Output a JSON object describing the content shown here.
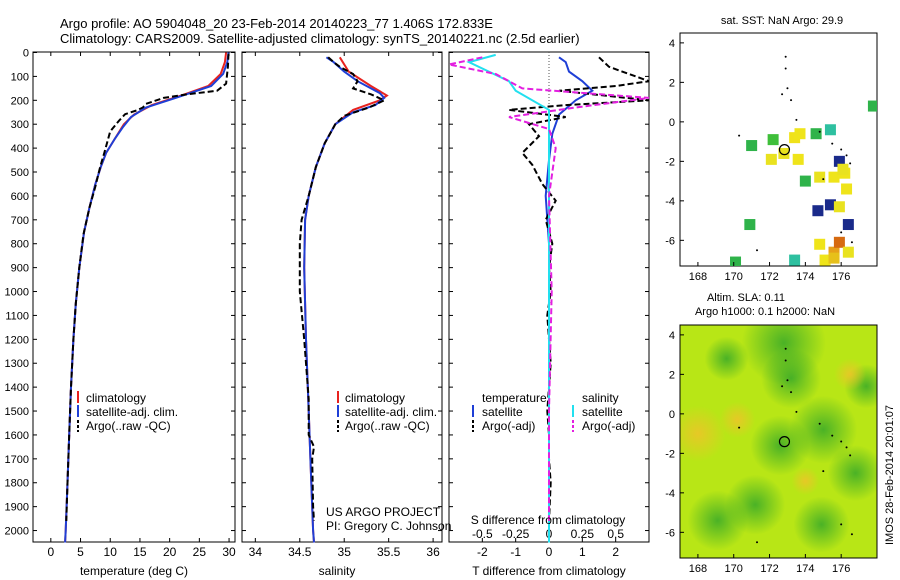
{
  "title": {
    "line1": "Argo profile: AO 5904048_20 23-Feb-2014 20140223_77 1.406S 172.833E",
    "line2": "Climatology: CARS2009. Satellite-adjusted climatology: synTS_20140221.nc (2.5d earlier)"
  },
  "depth_ticks": [
    "0",
    "100",
    "200",
    "300",
    "400",
    "500",
    "600",
    "700",
    "800",
    "900",
    "1000",
    "1100",
    "1200",
    "1300",
    "1400",
    "1500",
    "1600",
    "1700",
    "1800",
    "1900",
    "2000"
  ],
  "colors": {
    "climatology": "#e8231f",
    "satellite": "#1f3fd6",
    "argo": "#000000",
    "salinity_sat": "#22e0ef",
    "salinity_argo": "#e31fe0"
  },
  "temperature_panel": {
    "xlabel": "temperature (deg C)",
    "xticks": [
      "0",
      "5",
      "10",
      "15",
      "20",
      "25",
      "30"
    ],
    "legend": [
      "climatology",
      "satellite-adj. clim.",
      "Argo(..raw -QC)"
    ]
  },
  "salinity_panel": {
    "xlabel": "salinity",
    "xticks": [
      "34",
      "34.5",
      "35",
      "35.5",
      "36"
    ],
    "legend": [
      "climatology",
      "satellite-adj. clim.",
      "Argo(..raw -QC)"
    ],
    "credit1": "US ARGO PROJECT",
    "credit2": "PI: Gregory C. Johnson"
  },
  "difference_panel": {
    "xlabel_top": "S difference from climatology",
    "xlabel_bottom": "T difference from climatology",
    "s_ticks": [
      "-0.5",
      "-0.25",
      "0",
      "0.25",
      "0.5"
    ],
    "t_ticks": [
      "-2",
      "-1",
      "0",
      "1",
      "2"
    ],
    "legend_temperature_title": "temperature",
    "legend_salinity_title": "salinity",
    "legend_satellite": "satellite",
    "legend_argo": "Argo(-adj)"
  },
  "sst_map": {
    "title": "sat. SST: NaN Argo: 29.9",
    "xticks": [
      "168",
      "170",
      "172",
      "174",
      "176"
    ],
    "yticks": [
      "4",
      "2",
      "0",
      "-2",
      "-4",
      "-6"
    ]
  },
  "sla_map": {
    "title1": "Altim. SLA: 0.11",
    "title2": "Argo h1000: 0.1 h2000: NaN",
    "xticks": [
      "168",
      "170",
      "172",
      "174",
      "176"
    ],
    "yticks": [
      "4",
      "2",
      "0",
      "-2",
      "-4",
      "-6"
    ]
  },
  "footer_stamp": "IMOS 28-Feb-2014 20:01:07",
  "chart_data": [
    {
      "type": "line",
      "name": "temperature",
      "xlabel": "temperature (deg C)",
      "ylabel": "",
      "xlim": [
        -3,
        31
      ],
      "ylim": [
        2050,
        0
      ],
      "series": [
        {
          "name": "climatology",
          "points": [
            [
              29.5,
              0
            ],
            [
              29.3,
              40
            ],
            [
              28.6,
              90
            ],
            [
              26.5,
              140
            ],
            [
              22,
              180
            ],
            [
              17,
              220
            ],
            [
              14,
              260
            ],
            [
              12.3,
              300
            ],
            [
              10.8,
              360
            ],
            [
              9.3,
              420
            ],
            [
              8.4,
              480
            ],
            [
              7.5,
              550
            ],
            [
              6.5,
              650
            ],
            [
              5.6,
              750
            ],
            [
              4.8,
              900
            ],
            [
              4.2,
              1050
            ],
            [
              3.8,
              1200
            ],
            [
              3.4,
              1400
            ],
            [
              3.1,
              1600
            ],
            [
              2.8,
              1800
            ],
            [
              2.5,
              2000
            ],
            [
              2.4,
              2050
            ]
          ]
        },
        {
          "name": "satellite-adj. clim.",
          "points": [
            [
              29.9,
              0
            ],
            [
              29.7,
              40
            ],
            [
              29,
              90
            ],
            [
              27,
              140
            ],
            [
              21,
              190
            ],
            [
              16,
              230
            ],
            [
              13.5,
              270
            ],
            [
              12.2,
              310
            ],
            [
              10.8,
              360
            ],
            [
              9.3,
              420
            ],
            [
              8.4,
              480
            ],
            [
              7.5,
              550
            ],
            [
              6.5,
              650
            ],
            [
              5.6,
              750
            ],
            [
              4.8,
              900
            ],
            [
              4.2,
              1050
            ],
            [
              3.8,
              1200
            ],
            [
              3.4,
              1400
            ],
            [
              3.1,
              1600
            ],
            [
              2.8,
              1800
            ],
            [
              2.5,
              2000
            ],
            [
              2.4,
              2050
            ]
          ]
        },
        {
          "name": "Argo(..raw -QC)",
          "points": [
            [
              29.9,
              5
            ],
            [
              29.8,
              60
            ],
            [
              29.5,
              130
            ],
            [
              28,
              160
            ],
            [
              23,
              175
            ],
            [
              19,
              190
            ],
            [
              16,
              215
            ],
            [
              15.5,
              230
            ],
            [
              14.5,
              242
            ],
            [
              12.5,
              258
            ],
            [
              11.5,
              285
            ],
            [
              10,
              330
            ],
            [
              9,
              420
            ],
            [
              8.3,
              480
            ],
            [
              7.5,
              560
            ],
            [
              6.5,
              650
            ],
            [
              5.5,
              760
            ],
            [
              4.8,
              900
            ],
            [
              4.2,
              1050
            ],
            [
              3.8,
              1200
            ],
            [
              3.4,
              1400
            ],
            [
              3.1,
              1600
            ],
            [
              2.8,
              1800
            ],
            [
              2.6,
              1960
            ]
          ]
        }
      ]
    },
    {
      "type": "line",
      "name": "salinity",
      "xlabel": "salinity",
      "ylabel": "",
      "xlim": [
        33.85,
        36.1
      ],
      "ylim": [
        2050,
        0
      ],
      "series": [
        {
          "name": "climatology",
          "points": [
            [
              34.95,
              20
            ],
            [
              35.05,
              80
            ],
            [
              35.3,
              140
            ],
            [
              35.48,
              180
            ],
            [
              35.4,
              200
            ],
            [
              35.1,
              240
            ],
            [
              34.9,
              300
            ],
            [
              34.78,
              380
            ],
            [
              34.68,
              480
            ],
            [
              34.6,
              600
            ],
            [
              34.56,
              700
            ],
            [
              34.55,
              900
            ],
            [
              34.57,
              1200
            ],
            [
              34.6,
              1500
            ],
            [
              34.62,
              1700
            ],
            [
              34.65,
              2000
            ],
            [
              34.66,
              2050
            ]
          ]
        },
        {
          "name": "satellite-adj. clim.",
          "points": [
            [
              34.8,
              20
            ],
            [
              34.88,
              40
            ],
            [
              35,
              80
            ],
            [
              35.15,
              120
            ],
            [
              35.4,
              170
            ],
            [
              35.45,
              190
            ],
            [
              35.35,
              220
            ],
            [
              35.1,
              250
            ],
            [
              34.9,
              300
            ],
            [
              34.78,
              380
            ],
            [
              34.68,
              480
            ],
            [
              34.6,
              600
            ],
            [
              34.56,
              700
            ],
            [
              34.55,
              900
            ],
            [
              34.57,
              1200
            ],
            [
              34.6,
              1500
            ],
            [
              34.62,
              1700
            ],
            [
              34.65,
              2000
            ],
            [
              34.66,
              2050
            ]
          ]
        },
        {
          "name": "Argo(..raw -QC)",
          "points": [
            [
              34.82,
              20
            ],
            [
              34.88,
              40
            ],
            [
              34.95,
              60
            ],
            [
              35.1,
              90
            ],
            [
              35.15,
              120
            ],
            [
              35.1,
              150
            ],
            [
              35.3,
              175
            ],
            [
              35.45,
              200
            ],
            [
              35.28,
              230
            ],
            [
              35.0,
              265
            ],
            [
              34.9,
              300
            ],
            [
              34.78,
              380
            ],
            [
              34.68,
              480
            ],
            [
              34.6,
              600
            ],
            [
              34.52,
              700
            ],
            [
              34.5,
              800
            ],
            [
              34.5,
              1000
            ],
            [
              34.55,
              1200
            ],
            [
              34.6,
              1450
            ],
            [
              34.6,
              1600
            ],
            [
              34.66,
              1650
            ],
            [
              34.64,
              1700
            ],
            [
              34.65,
              1900
            ],
            [
              34.66,
              1960
            ]
          ]
        }
      ]
    },
    {
      "type": "line",
      "name": "difference",
      "xlabel": "T difference from climatology",
      "ylabel": "",
      "xlim": [
        -3,
        3
      ],
      "ylim": [
        2050,
        0
      ],
      "series": [
        {
          "name": "temperature satellite",
          "points": [
            [
              0.3,
              20
            ],
            [
              0.5,
              40
            ],
            [
              0.6,
              80
            ],
            [
              1.0,
              120
            ],
            [
              1.3,
              160
            ],
            [
              0.8,
              200
            ],
            [
              0.3,
              260
            ],
            [
              0.1,
              340
            ],
            [
              0.0,
              450
            ],
            [
              -0.1,
              600
            ],
            [
              0.0,
              800
            ],
            [
              0.0,
              1200
            ],
            [
              0.0,
              1600
            ],
            [
              0.0,
              2050
            ]
          ]
        },
        {
          "name": "temperature Argo(-adj)",
          "points": [
            [
              1.5,
              20
            ],
            [
              1.8,
              60
            ],
            [
              3.0,
              120
            ],
            [
              2.0,
              140
            ],
            [
              0.3,
              160
            ],
            [
              3.0,
              200
            ],
            [
              0.5,
              220
            ],
            [
              -1.2,
              240
            ],
            [
              0.5,
              270
            ],
            [
              -0.6,
              300
            ],
            [
              -0.3,
              350
            ],
            [
              -0.8,
              420
            ],
            [
              -0.5,
              470
            ],
            [
              -0.2,
              550
            ],
            [
              0.2,
              620
            ],
            [
              -0.1,
              700
            ],
            [
              0.1,
              800
            ],
            [
              0.0,
              900
            ],
            [
              0.05,
              1000
            ],
            [
              -0.05,
              1100
            ],
            [
              0.0,
              1200
            ],
            [
              0.05,
              1300
            ],
            [
              0.0,
              1400
            ],
            [
              -0.05,
              1500
            ],
            [
              0.0,
              1600
            ],
            [
              0.0,
              1700
            ],
            [
              0.05,
              1800
            ],
            [
              0.0,
              1960
            ]
          ]
        },
        {
          "name": "salinity satellite",
          "points": [
            [
              -0.4,
              10
            ],
            [
              -0.6,
              40
            ],
            [
              -0.3,
              120
            ],
            [
              -0.25,
              160
            ],
            [
              0.0,
              240
            ],
            [
              0.0,
              500
            ],
            [
              0.0,
              800
            ],
            [
              0.0,
              1500
            ],
            [
              0.0,
              2050
            ]
          ]
        },
        {
          "name": "salinity Argo(-adj)",
          "points": [
            [
              -0.5,
              20
            ],
            [
              -0.8,
              50
            ],
            [
              -0.4,
              90
            ],
            [
              -0.2,
              150
            ],
            [
              0.8,
              190
            ],
            [
              0.2,
              230
            ],
            [
              -0.3,
              270
            ],
            [
              0.0,
              320
            ],
            [
              0.05,
              400
            ],
            [
              0.0,
              600
            ],
            [
              0.02,
              1000
            ],
            [
              0.0,
              1500
            ],
            [
              0.0,
              1960
            ]
          ]
        }
      ]
    },
    {
      "type": "heatmap",
      "name": "sat. SST map",
      "xlim": [
        167,
        178
      ],
      "ylim": [
        -7.3,
        4.5
      ],
      "float_position": [
        172.833,
        -1.406
      ]
    },
    {
      "type": "heatmap",
      "name": "Altim. SLA map",
      "xlim": [
        167,
        178
      ],
      "ylim": [
        -7.3,
        4.5
      ],
      "float_position": [
        172.833,
        -1.406
      ]
    }
  ]
}
